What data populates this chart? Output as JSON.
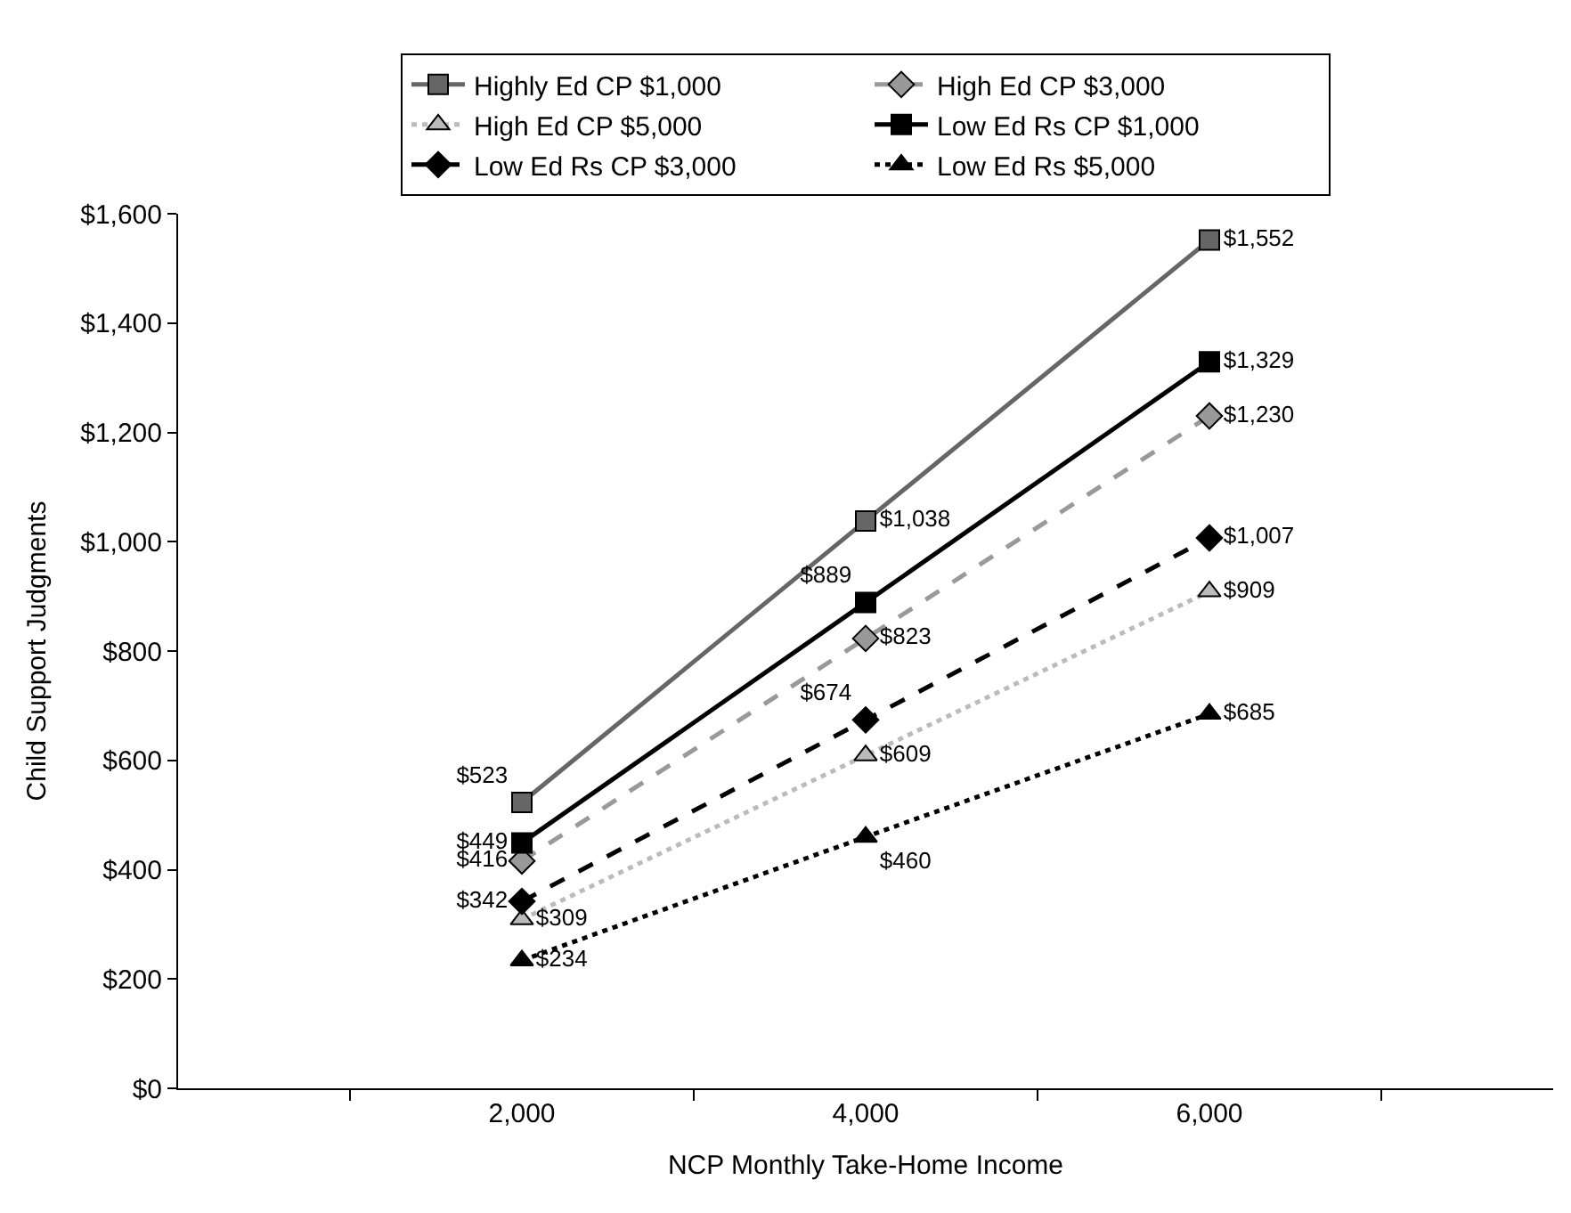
{
  "chart_data": {
    "type": "line",
    "xlabel": "NCP Monthly Take-Home Income",
    "ylabel": "Child Support Judgments",
    "categories": [
      "2,000",
      "4,000",
      "6,000"
    ],
    "series": [
      {
        "name": "Highly Ed CP $1,000",
        "color": "#666666",
        "marker": "square",
        "line_style": "solid",
        "values": [
          523,
          1038,
          1552
        ],
        "value_labels": [
          "$523",
          "$1,038",
          "$1,552"
        ]
      },
      {
        "name": "High Ed CP $3,000",
        "color": "#999999",
        "marker": "diamond",
        "line_style": "dashed",
        "values": [
          416,
          823,
          1230
        ],
        "value_labels": [
          "$416",
          "$823",
          "$1,230"
        ]
      },
      {
        "name": "High Ed CP $5,000",
        "color": "#bbbbbb",
        "marker": "triangle",
        "line_style": "dotted",
        "values": [
          309,
          609,
          909
        ],
        "value_labels": [
          "$309",
          "$609",
          "$909"
        ]
      },
      {
        "name": "Low Ed Rs CP $1,000",
        "color": "#000000",
        "marker": "square",
        "line_style": "solid",
        "values": [
          449,
          889,
          1329
        ],
        "value_labels": [
          "$449",
          "$889",
          "$1,329"
        ]
      },
      {
        "name": "Low Ed Rs CP $3,000",
        "color": "#000000",
        "marker": "diamond",
        "line_style": "dashed",
        "values": [
          342,
          674,
          1007
        ],
        "value_labels": [
          "$342",
          "$674",
          "$1,007"
        ]
      },
      {
        "name": "Low Ed Rs $5,000",
        "color": "#000000",
        "marker": "triangle",
        "line_style": "dotted",
        "values": [
          234,
          460,
          685
        ],
        "value_labels": [
          "$234",
          "$460",
          "$685"
        ]
      }
    ],
    "ylim": [
      0,
      1600
    ],
    "yticks": [
      {
        "value": 0,
        "label": "$0"
      },
      {
        "value": 200,
        "label": "$200"
      },
      {
        "value": 400,
        "label": "$400"
      },
      {
        "value": 600,
        "label": "$600"
      },
      {
        "value": 800,
        "label": "$800"
      },
      {
        "value": 1000,
        "label": "$1,000"
      },
      {
        "value": 1200,
        "label": "$1,200"
      },
      {
        "value": 1400,
        "label": "$1,400"
      },
      {
        "value": 1600,
        "label": "$1,600"
      }
    ],
    "grid": false,
    "legend": "top"
  }
}
